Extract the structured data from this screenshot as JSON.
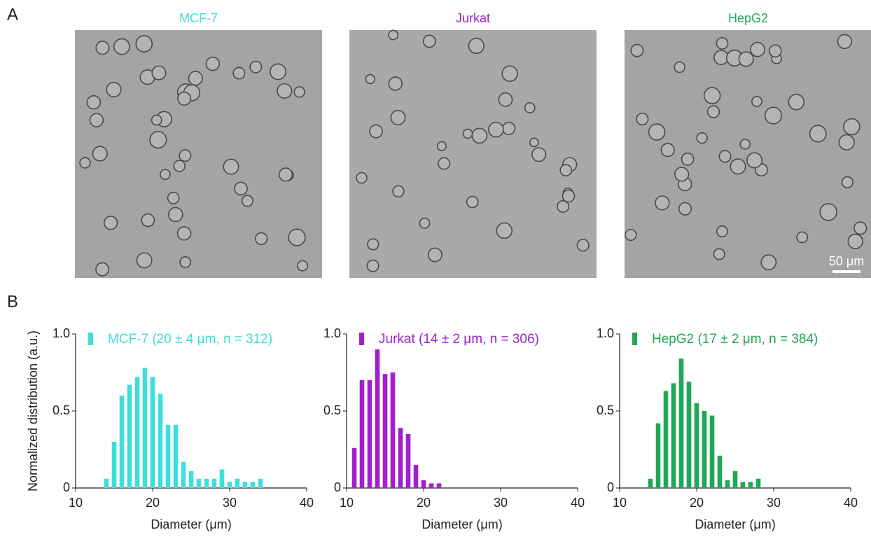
{
  "panel_labels": [
    "A",
    "B"
  ],
  "images": [
    {
      "title": "MCF-7",
      "color": "#3fdede"
    },
    {
      "title": "Jurkat",
      "color": "#a21fd0"
    },
    {
      "title": "HepG2",
      "color": "#1fa855"
    }
  ],
  "scale_bar": "50 μm",
  "chart_data": [
    {
      "type": "bar",
      "ylabel": "Normalized distribution (a.u.)",
      "xlabel": "Diameter (μm)",
      "xlim": [
        10,
        40
      ],
      "xticks": [
        10,
        20,
        30,
        40
      ],
      "ylim": [
        0,
        1
      ],
      "yticks": [
        0,
        0.5,
        {
          "value": 1,
          "label": "1.0"
        }
      ],
      "series": [
        {
          "name": "MCF-7 (20 ± 4 μm, n = 312)",
          "color": "#3fdede",
          "x": [
            14,
            15,
            16,
            17,
            18,
            19,
            20,
            21,
            22,
            23,
            24,
            25,
            26,
            27,
            28,
            29,
            30,
            31,
            32,
            33,
            34
          ],
          "values": [
            0.06,
            0.3,
            0.6,
            0.67,
            0.72,
            0.78,
            0.72,
            0.61,
            0.41,
            0.41,
            0.17,
            0.11,
            0.06,
            0.06,
            0.06,
            0.12,
            0.04,
            0.06,
            0.04,
            0.04,
            0.06
          ]
        }
      ]
    },
    {
      "type": "bar",
      "xlabel": "Diameter (μm)",
      "xlim": [
        10,
        40
      ],
      "xticks": [
        10,
        20,
        30,
        40
      ],
      "ylim": [
        0,
        1
      ],
      "yticks": [
        0,
        0.5,
        {
          "value": 1,
          "label": "1.0"
        }
      ],
      "series": [
        {
          "name": "Jurkat (14 ± 2 μm, n = 306)",
          "color": "#a21fd0",
          "x": [
            11,
            12,
            13,
            14,
            15,
            16,
            17,
            18,
            19,
            20,
            21,
            22
          ],
          "values": [
            0.26,
            0.7,
            0.7,
            0.9,
            0.74,
            0.75,
            0.39,
            0.35,
            0.15,
            0.05,
            0.03,
            0.03
          ]
        }
      ]
    },
    {
      "type": "bar",
      "xlabel": "Diameter (μm)",
      "xlim": [
        10,
        40
      ],
      "xticks": [
        10,
        20,
        30,
        40
      ],
      "ylim": [
        0,
        1
      ],
      "yticks": [
        0,
        0.5,
        {
          "value": 1,
          "label": "1.0"
        }
      ],
      "series": [
        {
          "name": "HepG2 (17 ± 2 μm, n = 384)",
          "color": "#1fa855",
          "x": [
            14,
            15,
            16,
            17,
            18,
            19,
            20,
            21,
            22,
            23,
            24,
            25,
            26,
            27,
            28
          ],
          "values": [
            0.06,
            0.42,
            0.63,
            0.68,
            0.84,
            0.69,
            0.55,
            0.5,
            0.47,
            0.21,
            0.05,
            0.11,
            0.04,
            0.04,
            0.06
          ]
        }
      ]
    }
  ]
}
